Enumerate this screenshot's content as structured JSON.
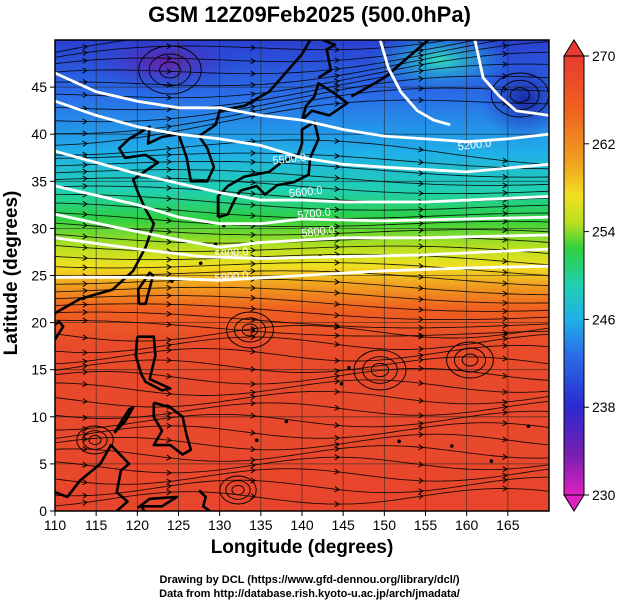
{
  "title": "GSM 12Z09Feb2025 (500.0hPa)",
  "axes": {
    "xlabel": "Longitude (degrees)",
    "ylabel": "Latitude  (degrees)",
    "xlim": [
      110,
      170
    ],
    "ylim": [
      0,
      50
    ],
    "xticks": [
      "110",
      "115",
      "120",
      "125",
      "130",
      "135",
      "140",
      "145",
      "150",
      "155",
      "160",
      "165"
    ],
    "yticks": [
      "0",
      "5",
      "10",
      "15",
      "20",
      "25",
      "30",
      "35",
      "40",
      "45"
    ],
    "grid": true
  },
  "colorbar": {
    "ticks": [
      "230",
      "238",
      "246",
      "254",
      "262",
      "270"
    ],
    "range": [
      230,
      270
    ],
    "colors": [
      "#e020c0",
      "#7a1fb0",
      "#2a2ad0",
      "#2a6ee8",
      "#20b0e8",
      "#20d0b0",
      "#2ed040",
      "#b8e020",
      "#f0e020",
      "#f0a020",
      "#f06020",
      "#e83a30"
    ]
  },
  "contour_labels": [
    {
      "text": "5200.0",
      "lon": 161,
      "lat": 38.5
    },
    {
      "text": "5500.0",
      "lon": 138.5,
      "lat": 37.0
    },
    {
      "text": "5600.0",
      "lon": 140.5,
      "lat": 33.5
    },
    {
      "text": "5700.0",
      "lon": 141.5,
      "lat": 31.2
    },
    {
      "text": "5800.0",
      "lon": 142,
      "lat": 29.3
    },
    {
      "text": "5900.0",
      "lon": 131.5,
      "lat": 27.0
    },
    {
      "text": "5900.0",
      "lon": 131.5,
      "lat": 24.5
    }
  ],
  "credit": {
    "line1": "Drawing by DCL (https://www.gfd-dennou.org/library/dcl/)",
    "line2": "Data from http://database.rish.kyoto-u.ac.jp/arch/jmadata/"
  }
}
